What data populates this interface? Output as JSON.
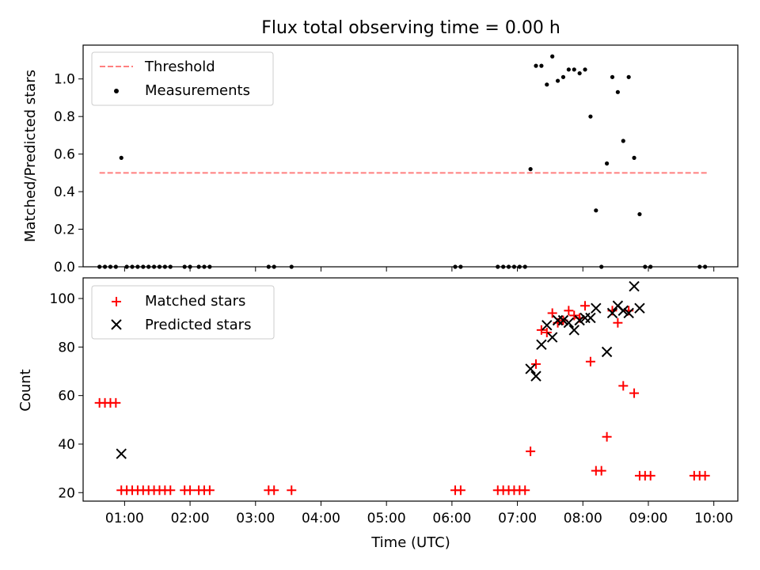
{
  "figure": {
    "title": "Flux total observing time = 0.00 h",
    "xlabel": "Time (UTC)"
  },
  "colors": {
    "threshold": "#ff7f7f",
    "measurements": "#000000",
    "matched": "#ff0000",
    "predicted": "#000000"
  },
  "chart_data": [
    {
      "type": "scatter",
      "panel": "top",
      "title": "Flux total observing time = 0.00 h",
      "xlabel": "",
      "ylabel": "Matched/Predicted stars",
      "xlim": [
        "00:22",
        "10:22"
      ],
      "ylim": [
        0.0,
        1.18
      ],
      "yticks": [
        0.0,
        0.2,
        0.4,
        0.6,
        0.8,
        1.0
      ],
      "ytick_labels": [
        "0.0",
        "0.2",
        "0.4",
        "0.6",
        "0.8",
        "1.0"
      ],
      "xticks": [
        "01:00",
        "02:00",
        "03:00",
        "04:00",
        "05:00",
        "06:00",
        "07:00",
        "08:00",
        "09:00",
        "10:00"
      ],
      "legend_position": "top-left",
      "threshold": {
        "name": "Threshold",
        "y": 0.5,
        "x_range": [
          "00:37",
          "09:55"
        ]
      },
      "series": [
        {
          "name": "Measurements",
          "points": [
            [
              "00:37",
              0.0
            ],
            [
              "00:42",
              0.0
            ],
            [
              "00:47",
              0.0
            ],
            [
              "00:52",
              0.0
            ],
            [
              "00:57",
              0.58
            ],
            [
              "01:02",
              0.0
            ],
            [
              "01:07",
              0.0
            ],
            [
              "01:12",
              0.0
            ],
            [
              "01:17",
              0.0
            ],
            [
              "01:22",
              0.0
            ],
            [
              "01:27",
              0.0
            ],
            [
              "01:32",
              0.0
            ],
            [
              "01:37",
              0.0
            ],
            [
              "01:42",
              0.0
            ],
            [
              "01:55",
              0.0
            ],
            [
              "02:00",
              0.0
            ],
            [
              "02:08",
              0.0
            ],
            [
              "02:13",
              0.0
            ],
            [
              "02:18",
              0.0
            ],
            [
              "03:12",
              0.0
            ],
            [
              "03:17",
              0.0
            ],
            [
              "03:33",
              0.0
            ],
            [
              "06:03",
              0.0
            ],
            [
              "06:08",
              0.0
            ],
            [
              "06:42",
              0.0
            ],
            [
              "06:47",
              0.0
            ],
            [
              "06:52",
              0.0
            ],
            [
              "06:57",
              0.0
            ],
            [
              "07:02",
              0.0
            ],
            [
              "07:07",
              0.0
            ],
            [
              "07:12",
              0.52
            ],
            [
              "07:17",
              1.07
            ],
            [
              "07:22",
              1.07
            ],
            [
              "07:27",
              0.97
            ],
            [
              "07:32",
              1.12
            ],
            [
              "07:37",
              0.99
            ],
            [
              "07:42",
              1.01
            ],
            [
              "07:47",
              1.05
            ],
            [
              "07:52",
              1.05
            ],
            [
              "07:57",
              1.03
            ],
            [
              "08:02",
              1.05
            ],
            [
              "08:07",
              0.8
            ],
            [
              "08:12",
              0.3
            ],
            [
              "08:17",
              0.0
            ],
            [
              "08:22",
              0.55
            ],
            [
              "08:27",
              1.01
            ],
            [
              "08:32",
              0.93
            ],
            [
              "08:37",
              0.67
            ],
            [
              "08:42",
              1.01
            ],
            [
              "08:47",
              0.58
            ],
            [
              "08:52",
              0.28
            ],
            [
              "08:57",
              0.0
            ],
            [
              "09:02",
              0.0
            ],
            [
              "09:47",
              0.0
            ],
            [
              "09:52",
              0.0
            ]
          ]
        }
      ]
    },
    {
      "type": "scatter",
      "panel": "bottom",
      "xlabel": "Time (UTC)",
      "ylabel": "Count",
      "xlim": [
        "00:22",
        "10:22"
      ],
      "ylim": [
        16.5,
        108.5
      ],
      "yticks": [
        20,
        40,
        60,
        80,
        100
      ],
      "ytick_labels": [
        "20",
        "40",
        "60",
        "80",
        "100"
      ],
      "xticks": [
        "01:00",
        "02:00",
        "03:00",
        "04:00",
        "05:00",
        "06:00",
        "07:00",
        "08:00",
        "09:00",
        "10:00"
      ],
      "legend_position": "top-left",
      "series": [
        {
          "name": "Matched stars",
          "marker": "plus",
          "points": [
            [
              "00:37",
              57
            ],
            [
              "00:42",
              57
            ],
            [
              "00:47",
              57
            ],
            [
              "00:52",
              57
            ],
            [
              "00:57",
              21
            ],
            [
              "01:02",
              21
            ],
            [
              "01:07",
              21
            ],
            [
              "01:12",
              21
            ],
            [
              "01:17",
              21
            ],
            [
              "01:22",
              21
            ],
            [
              "01:27",
              21
            ],
            [
              "01:32",
              21
            ],
            [
              "01:37",
              21
            ],
            [
              "01:42",
              21
            ],
            [
              "01:55",
              21
            ],
            [
              "02:00",
              21
            ],
            [
              "02:08",
              21
            ],
            [
              "02:13",
              21
            ],
            [
              "02:18",
              21
            ],
            [
              "03:12",
              21
            ],
            [
              "03:17",
              21
            ],
            [
              "03:33",
              21
            ],
            [
              "06:03",
              21
            ],
            [
              "06:08",
              21
            ],
            [
              "06:42",
              21
            ],
            [
              "06:47",
              21
            ],
            [
              "06:52",
              21
            ],
            [
              "06:57",
              21
            ],
            [
              "07:02",
              21
            ],
            [
              "07:07",
              21
            ],
            [
              "07:12",
              37
            ],
            [
              "07:17",
              73
            ],
            [
              "07:22",
              87
            ],
            [
              "07:27",
              86
            ],
            [
              "07:32",
              94
            ],
            [
              "07:37",
              90
            ],
            [
              "07:42",
              91
            ],
            [
              "07:47",
              95
            ],
            [
              "07:52",
              93
            ],
            [
              "07:57",
              92
            ],
            [
              "08:02",
              97
            ],
            [
              "08:07",
              74
            ],
            [
              "08:12",
              29
            ],
            [
              "08:17",
              29
            ],
            [
              "08:22",
              43
            ],
            [
              "08:27",
              95
            ],
            [
              "08:32",
              90
            ],
            [
              "08:37",
              64
            ],
            [
              "08:42",
              95
            ],
            [
              "08:47",
              61
            ],
            [
              "08:52",
              27
            ],
            [
              "08:57",
              27
            ],
            [
              "09:02",
              27
            ],
            [
              "09:42",
              27
            ],
            [
              "09:47",
              27
            ],
            [
              "09:52",
              27
            ]
          ]
        },
        {
          "name": "Predicted stars",
          "marker": "x",
          "points": [
            [
              "00:57",
              36
            ],
            [
              "07:12",
              71
            ],
            [
              "07:17",
              68
            ],
            [
              "07:22",
              81
            ],
            [
              "07:27",
              89
            ],
            [
              "07:32",
              84
            ],
            [
              "07:37",
              91
            ],
            [
              "07:42",
              91
            ],
            [
              "07:47",
              90
            ],
            [
              "07:52",
              87
            ],
            [
              "07:57",
              91
            ],
            [
              "08:02",
              92
            ],
            [
              "08:07",
              92
            ],
            [
              "08:12",
              96
            ],
            [
              "08:22",
              78
            ],
            [
              "08:27",
              94
            ],
            [
              "08:32",
              97
            ],
            [
              "08:37",
              95
            ],
            [
              "08:42",
              94
            ],
            [
              "08:47",
              105
            ],
            [
              "08:52",
              96
            ]
          ]
        }
      ]
    }
  ]
}
